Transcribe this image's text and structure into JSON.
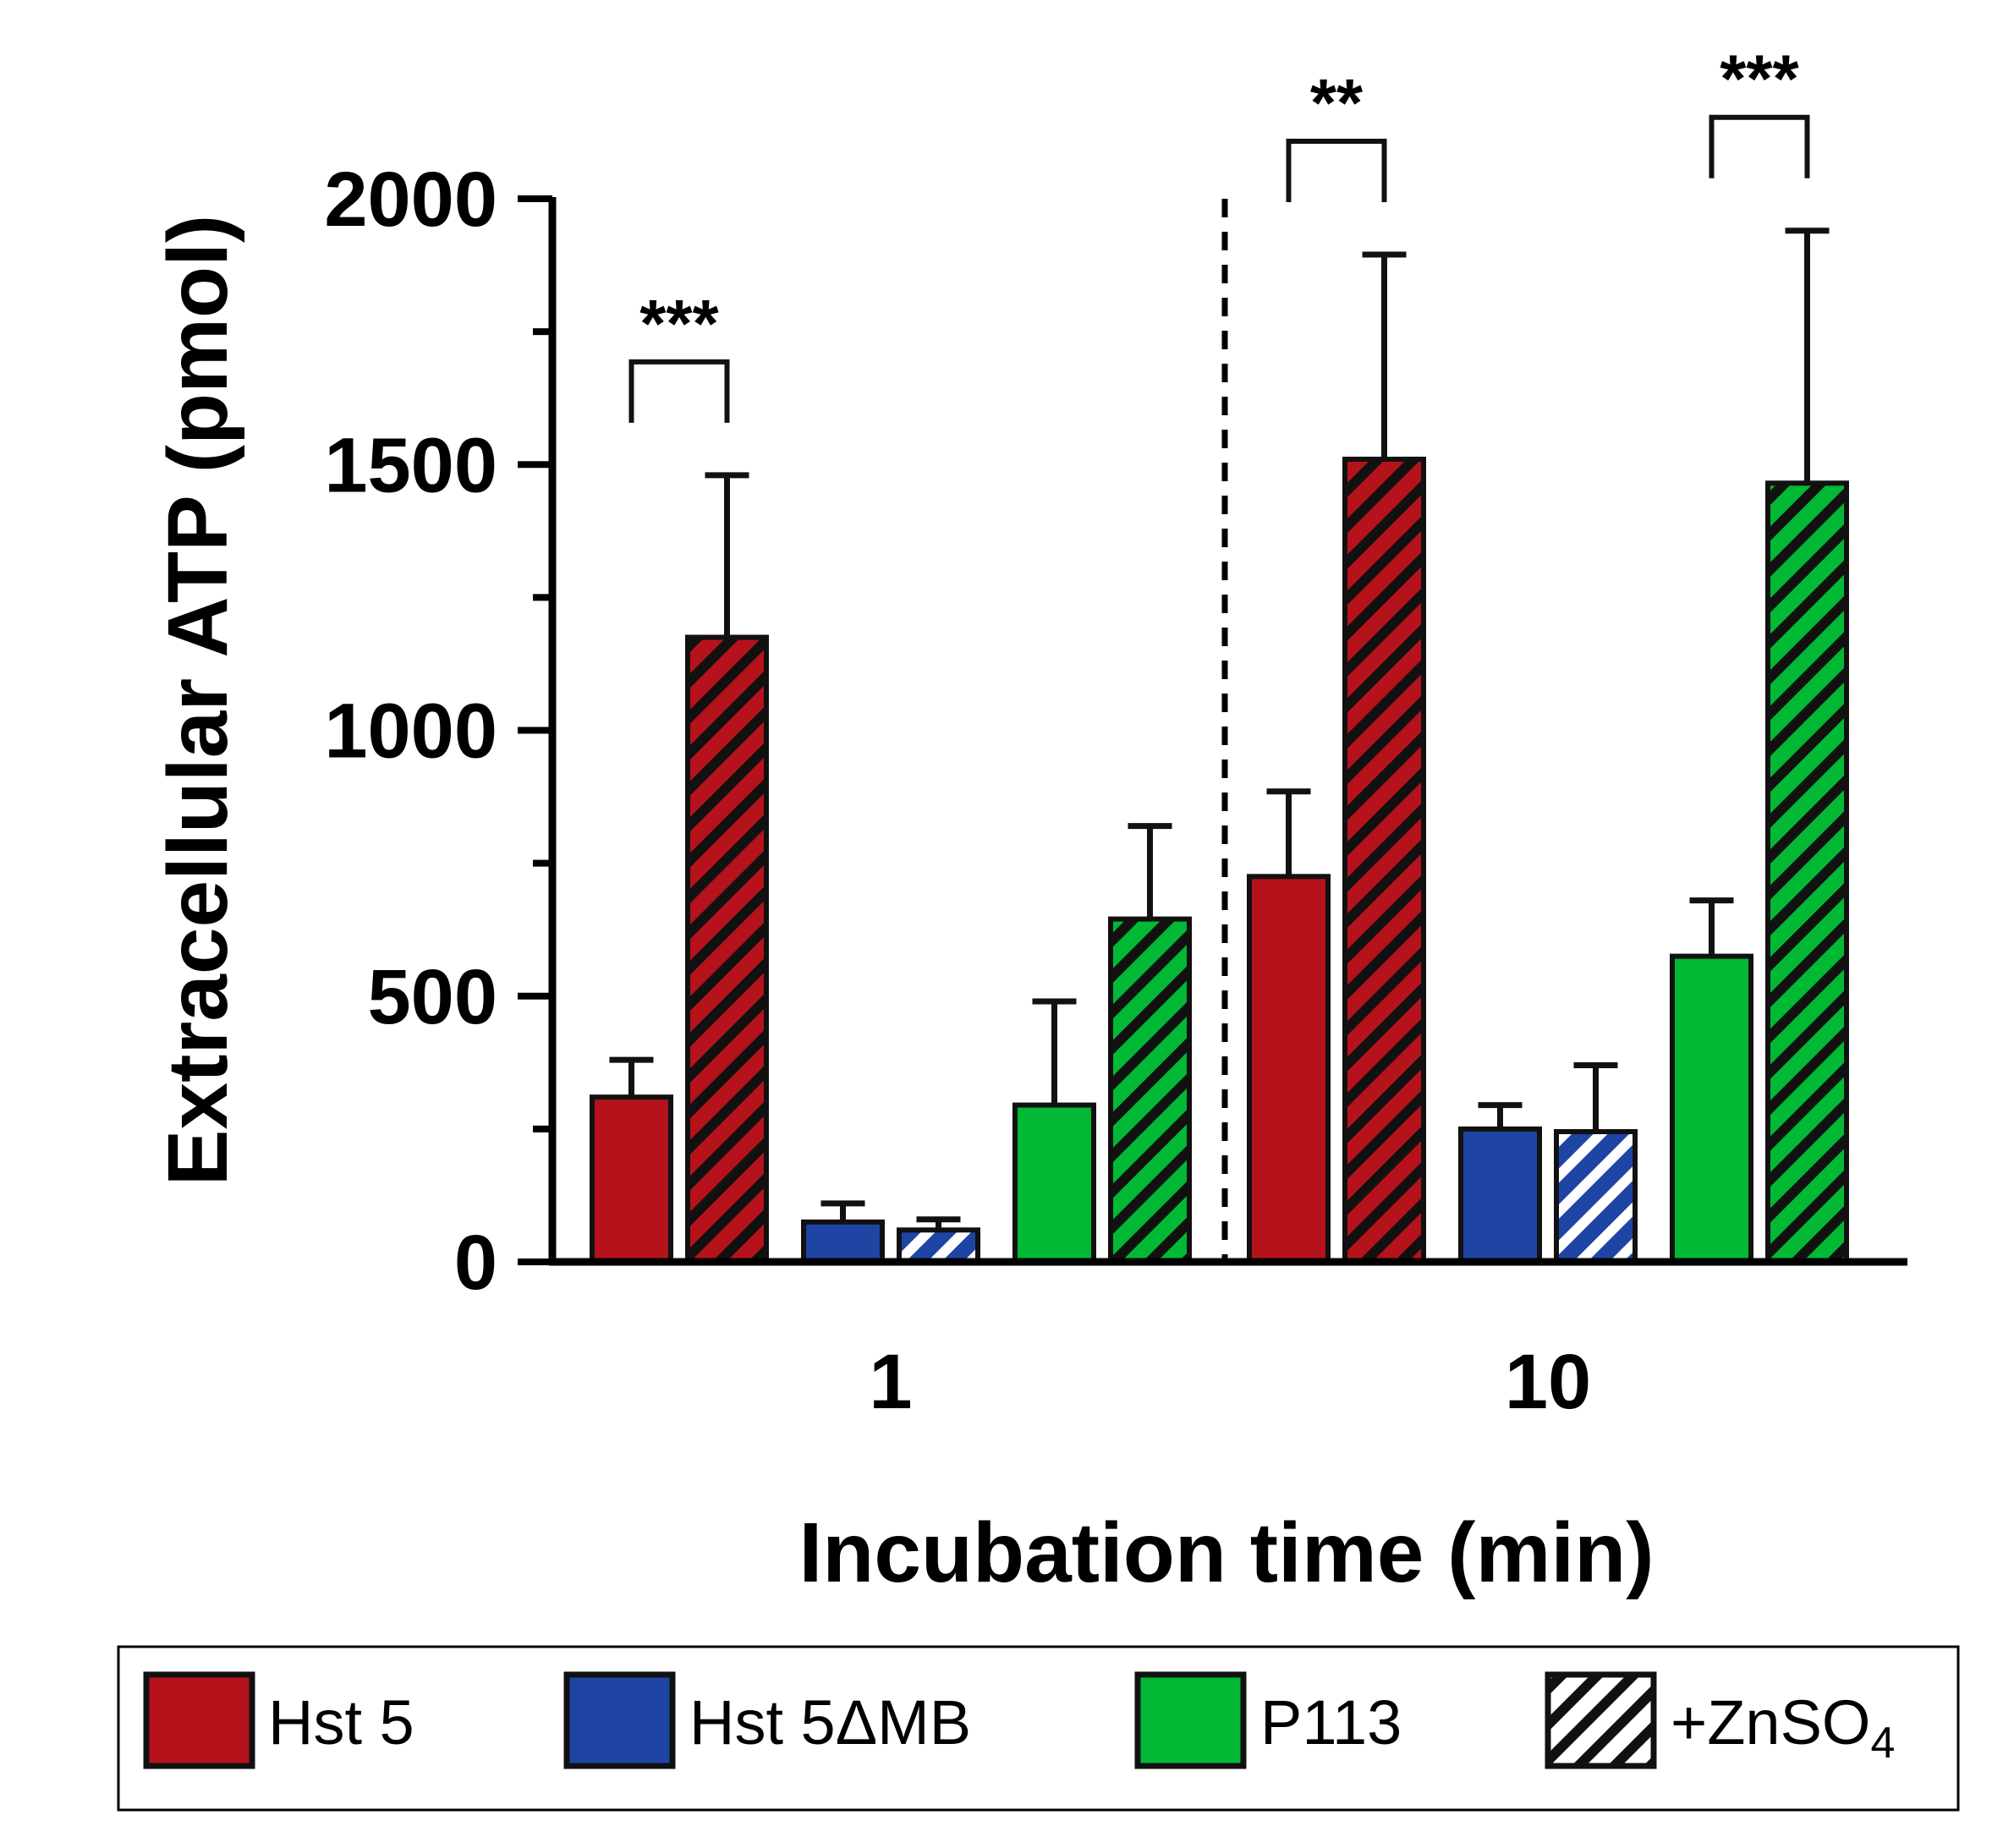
{
  "chart_data": {
    "type": "bar",
    "title": "",
    "xlabel": "Incubation time (min)",
    "ylabel": "Extracellular ATP (pmol)",
    "ylim": [
      0,
      2000
    ],
    "yticks": [
      "0",
      "500",
      "1000",
      "1500",
      "2000"
    ],
    "categories": [
      "1",
      "10"
    ],
    "grid": false,
    "legend_position": "bottom",
    "series": [
      {
        "name": "Hst 5",
        "color": "#b5121b",
        "hatched": false,
        "values": [
          310,
          725
        ],
        "errors": [
          70,
          160
        ]
      },
      {
        "name": "Hst 5 +ZnSO4",
        "color": "#b5121b",
        "hatched": true,
        "values": [
          1175,
          1510
        ],
        "errors": [
          305,
          385
        ]
      },
      {
        "name": "Hst 5ΔMB",
        "color": "#1e44a4",
        "hatched": false,
        "values": [
          75,
          250
        ],
        "errors": [
          35,
          45
        ]
      },
      {
        "name": "Hst 5ΔMB +ZnSO4",
        "color": "#1e44a4",
        "hatched": true,
        "values": [
          60,
          245
        ],
        "errors": [
          20,
          125
        ]
      },
      {
        "name": "P113",
        "color": "#02b935",
        "hatched": false,
        "values": [
          295,
          575
        ],
        "errors": [
          195,
          105
        ]
      },
      {
        "name": "P113 +ZnSO4",
        "color": "#02b935",
        "hatched": true,
        "values": [
          645,
          1465
        ],
        "errors": [
          175,
          475
        ]
      }
    ],
    "significance": [
      {
        "category": "1",
        "between": [
          "Hst 5",
          "Hst 5 +ZnSO4"
        ],
        "label": "***"
      },
      {
        "category": "10",
        "between": [
          "Hst 5",
          "Hst 5 +ZnSO4"
        ],
        "label": "**"
      },
      {
        "category": "10",
        "between": [
          "P113",
          "P113 +ZnSO4"
        ],
        "label": "***"
      }
    ],
    "legend": [
      {
        "label": "Hst 5",
        "color": "#b5121b",
        "hatched": false
      },
      {
        "label": "Hst 5ΔMB",
        "color": "#1e44a4",
        "hatched": false
      },
      {
        "label": "P113",
        "color": "#02b935",
        "hatched": false
      },
      {
        "label": "+ZnSO",
        "subscript": "4",
        "color": "#ffffff",
        "hatched": true
      }
    ]
  }
}
